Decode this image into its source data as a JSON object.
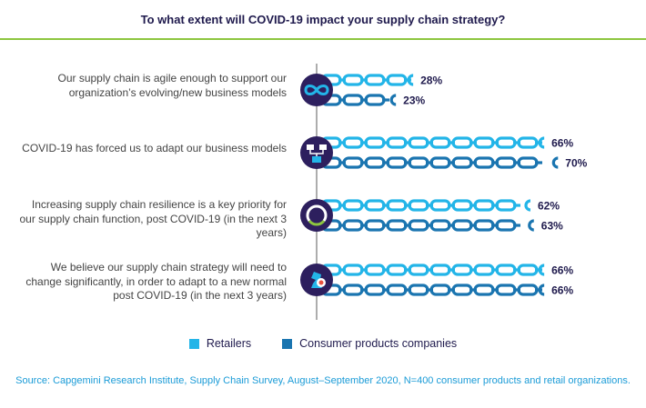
{
  "title": "To what extent will COVID-19 impact your supply chain strategy?",
  "chart_data": {
    "type": "bar",
    "title": "To what extent will COVID-19 impact your supply chain strategy?",
    "categories": [
      "Our supply chain is agile enough to support our organization’s evolving/new business models",
      "COVID-19 has forced us to adapt our business models",
      "Increasing supply chain resilience is a key priority for our supply chain function, post COVID-19 (in the next 3 years)",
      "We believe our supply chain strategy will need to change significantly, in order to adapt to a new normal post COVID-19 (in the next 3 years)"
    ],
    "series": [
      {
        "name": "Retailers",
        "values": [
          28,
          66,
          62,
          66
        ],
        "labels": [
          "28%",
          "66%",
          "62%",
          "66%"
        ],
        "color": "#23b5e8"
      },
      {
        "name": "Consumer products companies",
        "values": [
          23,
          70,
          63,
          66
        ],
        "labels": [
          "23%",
          "70%",
          "63%",
          "66%"
        ],
        "color": "#1a75b0"
      }
    ],
    "unit": "%",
    "icons": [
      "infinity-icon",
      "org-structure-icon",
      "resilience-cycle-icon",
      "strategy-chess-icon"
    ],
    "icon_circle_color": "#2d1f5e"
  },
  "source": "Source: Capgemini Research Institute, Supply Chain Survey, August–September 2020, N=400 consumer products and retail organizations."
}
